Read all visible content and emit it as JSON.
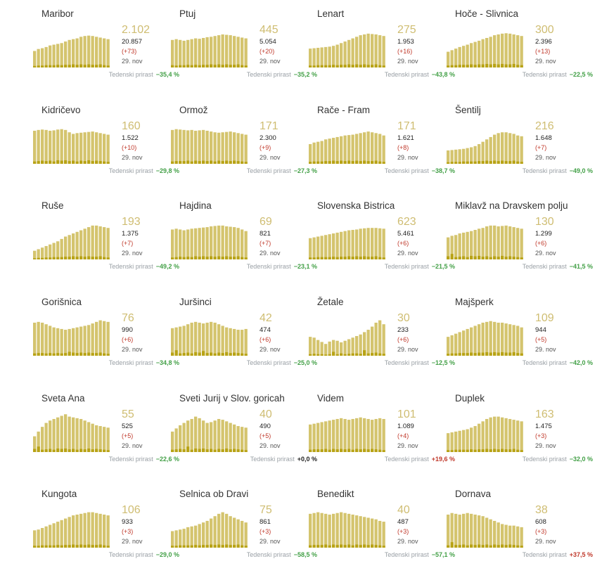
{
  "colors": {
    "bar": "#d4c46e",
    "newcases": "#b8a316",
    "active": "#cfbd72",
    "positive": "#43a047",
    "negative": "#c0392b",
    "zero": "#222222"
  },
  "growth_label": "Tedenski prirast",
  "chart_data": [
    {
      "type": "bar",
      "title": "Maribor",
      "active": "2.102",
      "total": "20.857",
      "delta": "(+73)",
      "date": "29. nov",
      "growth": "−35,4 %",
      "trend": "down",
      "values": [
        42,
        47,
        49,
        52,
        56,
        58,
        60,
        62,
        66,
        70,
        72,
        74,
        78,
        80,
        81,
        80,
        78,
        76,
        74,
        72
      ],
      "new": [
        4,
        5,
        5,
        6,
        6,
        6,
        7,
        6,
        7,
        7,
        8,
        7,
        8,
        7,
        8,
        7,
        7,
        8,
        6,
        5
      ]
    },
    {
      "type": "bar",
      "title": "Ptuj",
      "active": "445",
      "total": "5.054",
      "delta": "(+20)",
      "date": "29. nov",
      "growth": "−35,2 %",
      "trend": "down",
      "values": [
        70,
        72,
        70,
        68,
        70,
        72,
        74,
        73,
        75,
        77,
        78,
        80,
        82,
        84,
        83,
        82,
        80,
        78,
        76,
        74
      ],
      "new": [
        6,
        5,
        6,
        6,
        7,
        6,
        7,
        6,
        7,
        7,
        8,
        7,
        8,
        7,
        8,
        7,
        7,
        8,
        6,
        5
      ]
    },
    {
      "type": "bar",
      "title": "Lenart",
      "active": "275",
      "total": "1.953",
      "delta": "(+16)",
      "date": "29. nov",
      "growth": "−43,8 %",
      "trend": "down",
      "values": [
        48,
        49,
        50,
        51,
        52,
        53,
        55,
        58,
        62,
        66,
        70,
        74,
        78,
        82,
        84,
        86,
        85,
        84,
        82,
        80
      ],
      "new": [
        5,
        5,
        6,
        6,
        6,
        6,
        7,
        6,
        7,
        7,
        8,
        7,
        8,
        7,
        8,
        7,
        7,
        8,
        6,
        5
      ]
    },
    {
      "type": "bar",
      "title": "Hoče - Slivnica",
      "active": "300",
      "total": "2.396",
      "delta": "(+13)",
      "date": "29. nov",
      "growth": "−22,5 %",
      "trend": "down",
      "values": [
        40,
        44,
        48,
        52,
        55,
        58,
        62,
        65,
        68,
        72,
        75,
        78,
        82,
        84,
        86,
        87,
        86,
        84,
        82,
        80
      ],
      "new": [
        5,
        6,
        6,
        7,
        7,
        7,
        8,
        7,
        8,
        8,
        9,
        8,
        9,
        8,
        9,
        8,
        8,
        9,
        7,
        6
      ]
    },
    {
      "type": "bar",
      "title": "Kidričevo",
      "active": "160",
      "total": "1.522",
      "delta": "(+10)",
      "date": "29. nov",
      "growth": "−29,8 %",
      "trend": "down",
      "values": [
        84,
        86,
        87,
        86,
        84,
        85,
        87,
        88,
        86,
        80,
        76,
        78,
        79,
        80,
        81,
        82,
        80,
        78,
        76,
        74
      ],
      "new": [
        6,
        7,
        8,
        7,
        8,
        6,
        9,
        8,
        9,
        7,
        8,
        6,
        8,
        7,
        9,
        7,
        8,
        7,
        6,
        5
      ]
    },
    {
      "type": "bar",
      "title": "Ormož",
      "active": "171",
      "total": "2.300",
      "delta": "(+9)",
      "date": "29. nov",
      "growth": "−27,3 %",
      "trend": "down",
      "values": [
        86,
        88,
        87,
        86,
        85,
        86,
        84,
        85,
        86,
        84,
        82,
        80,
        79,
        80,
        81,
        82,
        80,
        78,
        76,
        74
      ],
      "new": [
        6,
        7,
        7,
        7,
        8,
        6,
        8,
        7,
        8,
        7,
        8,
        6,
        8,
        7,
        8,
        7,
        8,
        7,
        6,
        5
      ]
    },
    {
      "type": "bar",
      "title": "Rače - Fram",
      "active": "171",
      "total": "1.621",
      "delta": "(+8)",
      "date": "29. nov",
      "growth": "−38,7 %",
      "trend": "down",
      "values": [
        50,
        54,
        56,
        58,
        62,
        64,
        66,
        68,
        70,
        72,
        73,
        74,
        76,
        78,
        80,
        82,
        80,
        78,
        76,
        72
      ],
      "new": [
        5,
        6,
        6,
        6,
        7,
        7,
        8,
        7,
        8,
        7,
        8,
        7,
        8,
        7,
        8,
        7,
        7,
        8,
        6,
        5
      ]
    },
    {
      "type": "bar",
      "title": "Šentilj",
      "active": "216",
      "total": "1.648",
      "delta": "(+7)",
      "date": "29. nov",
      "growth": "−49,0 %",
      "trend": "down",
      "values": [
        34,
        35,
        36,
        37,
        38,
        40,
        42,
        45,
        50,
        56,
        62,
        68,
        74,
        78,
        80,
        80,
        78,
        76,
        72,
        70
      ],
      "new": [
        4,
        5,
        5,
        5,
        6,
        6,
        6,
        6,
        7,
        7,
        8,
        7,
        8,
        7,
        8,
        7,
        7,
        8,
        6,
        5
      ]
    },
    {
      "type": "bar",
      "title": "Ruše",
      "active": "193",
      "total": "1.375",
      "delta": "(+7)",
      "date": "29. nov",
      "growth": "−49,2 %",
      "trend": "down",
      "values": [
        22,
        26,
        30,
        34,
        38,
        42,
        46,
        52,
        58,
        62,
        66,
        70,
        74,
        78,
        82,
        86,
        86,
        84,
        82,
        80
      ],
      "new": [
        3,
        4,
        4,
        5,
        5,
        6,
        6,
        6,
        7,
        7,
        8,
        7,
        8,
        7,
        8,
        7,
        7,
        8,
        6,
        5
      ]
    },
    {
      "type": "bar",
      "title": "Hajdina",
      "active": "69",
      "total": "821",
      "delta": "(+7)",
      "date": "29. nov",
      "growth": "−23,1 %",
      "trend": "down",
      "values": [
        76,
        78,
        76,
        74,
        76,
        78,
        79,
        80,
        81,
        82,
        84,
        85,
        86,
        86,
        84,
        83,
        82,
        80,
        76,
        72
      ],
      "new": [
        5,
        6,
        7,
        6,
        7,
        6,
        8,
        7,
        8,
        7,
        8,
        7,
        8,
        7,
        8,
        7,
        7,
        8,
        6,
        5
      ]
    },
    {
      "type": "bar",
      "title": "Slovenska Bistrica",
      "active": "623",
      "total": "5.461",
      "delta": "(+6)",
      "date": "29. nov",
      "growth": "−21,5 %",
      "trend": "down",
      "values": [
        54,
        56,
        58,
        60,
        62,
        64,
        66,
        68,
        70,
        72,
        74,
        75,
        76,
        78,
        79,
        80,
        80,
        80,
        79,
        78
      ],
      "new": [
        5,
        5,
        6,
        6,
        6,
        6,
        7,
        6,
        7,
        7,
        8,
        7,
        8,
        7,
        8,
        7,
        7,
        8,
        6,
        5
      ]
    },
    {
      "type": "bar",
      "title": "Miklavž na Dravskem polju",
      "active": "130",
      "total": "1.299",
      "delta": "(+6)",
      "date": "29. nov",
      "growth": "−41,5 %",
      "trend": "down",
      "values": [
        56,
        60,
        62,
        66,
        68,
        70,
        72,
        75,
        78,
        80,
        84,
        86,
        86,
        84,
        85,
        86,
        84,
        82,
        80,
        78
      ],
      "new": [
        8,
        14,
        6,
        7,
        8,
        6,
        9,
        8,
        9,
        7,
        8,
        6,
        8,
        7,
        9,
        7,
        8,
        7,
        6,
        5
      ]
    },
    {
      "type": "bar",
      "title": "Gorišnica",
      "active": "76",
      "total": "990",
      "delta": "(+6)",
      "date": "29. nov",
      "growth": "−34,8 %",
      "trend": "down",
      "values": [
        84,
        86,
        84,
        80,
        76,
        72,
        70,
        68,
        66,
        68,
        70,
        72,
        74,
        76,
        78,
        82,
        86,
        90,
        88,
        86
      ],
      "new": [
        6,
        7,
        7,
        6,
        7,
        6,
        7,
        6,
        7,
        10,
        8,
        7,
        8,
        7,
        8,
        7,
        7,
        8,
        6,
        5
      ]
    },
    {
      "type": "bar",
      "title": "Juršinci",
      "active": "42",
      "total": "474",
      "delta": "(+6)",
      "date": "29. nov",
      "growth": "−25,0 %",
      "trend": "down",
      "values": [
        70,
        72,
        74,
        76,
        80,
        84,
        86,
        84,
        82,
        84,
        86,
        84,
        80,
        76,
        72,
        70,
        68,
        66,
        66,
        68
      ],
      "new": [
        8,
        14,
        6,
        7,
        8,
        6,
        9,
        8,
        12,
        7,
        8,
        6,
        8,
        7,
        9,
        7,
        8,
        7,
        6,
        5
      ]
    },
    {
      "type": "bar",
      "title": "Žetale",
      "active": "30",
      "total": "233",
      "delta": "(+6)",
      "date": "29. nov",
      "growth": "−12,5 %",
      "trend": "down",
      "values": [
        48,
        46,
        40,
        35,
        30,
        36,
        40,
        38,
        34,
        38,
        42,
        46,
        50,
        54,
        60,
        66,
        74,
        84,
        90,
        80
      ],
      "new": [
        4,
        5,
        4,
        4,
        3,
        4,
        10,
        4,
        6,
        4,
        5,
        6,
        6,
        5,
        14,
        6,
        7,
        8,
        6,
        5
      ]
    },
    {
      "type": "bar",
      "title": "Majšperk",
      "active": "109",
      "total": "944",
      "delta": "(+5)",
      "date": "29. nov",
      "growth": "−42,0 %",
      "trend": "down",
      "values": [
        48,
        52,
        56,
        60,
        64,
        68,
        72,
        76,
        80,
        84,
        86,
        88,
        86,
        84,
        84,
        82,
        80,
        78,
        76,
        72
      ],
      "new": [
        5,
        6,
        6,
        7,
        7,
        7,
        8,
        7,
        8,
        8,
        9,
        8,
        9,
        8,
        9,
        8,
        8,
        9,
        7,
        6
      ]
    },
    {
      "type": "bar",
      "title": "Sveta Ana",
      "active": "55",
      "total": "525",
      "delta": "(+5)",
      "date": "29. nov",
      "growth": "−22,6 %",
      "trend": "down",
      "values": [
        40,
        52,
        64,
        74,
        80,
        84,
        88,
        92,
        96,
        90,
        88,
        86,
        84,
        80,
        76,
        72,
        68,
        66,
        64,
        62
      ],
      "new": [
        8,
        14,
        6,
        7,
        8,
        6,
        9,
        8,
        9,
        7,
        8,
        6,
        8,
        7,
        9,
        7,
        8,
        7,
        6,
        5
      ]
    },
    {
      "type": "bar",
      "title": "Sveti Jurij v Slov. goricah",
      "active": "40",
      "total": "490",
      "delta": "(+5)",
      "date": "29. nov",
      "growth": "+0,0 %",
      "trend": "zero",
      "values": [
        52,
        60,
        68,
        74,
        80,
        84,
        90,
        86,
        80,
        74,
        76,
        80,
        84,
        82,
        78,
        74,
        70,
        66,
        64,
        62
      ],
      "new": [
        6,
        7,
        8,
        7,
        14,
        6,
        9,
        8,
        9,
        7,
        8,
        6,
        8,
        7,
        9,
        7,
        8,
        7,
        6,
        5
      ]
    },
    {
      "type": "bar",
      "title": "Videm",
      "active": "101",
      "total": "1.089",
      "delta": "(+4)",
      "date": "29. nov",
      "growth": "+19,6 %",
      "trend": "up",
      "values": [
        70,
        72,
        74,
        76,
        78,
        80,
        82,
        84,
        86,
        84,
        82,
        84,
        86,
        88,
        86,
        84,
        82,
        84,
        86,
        84
      ],
      "new": [
        6,
        7,
        7,
        7,
        8,
        6,
        8,
        7,
        8,
        7,
        8,
        6,
        8,
        7,
        8,
        7,
        8,
        7,
        6,
        5
      ]
    },
    {
      "type": "bar",
      "title": "Duplek",
      "active": "163",
      "total": "1.475",
      "delta": "(+3)",
      "date": "29. nov",
      "growth": "−32,0 %",
      "trend": "down",
      "values": [
        48,
        50,
        52,
        54,
        56,
        58,
        62,
        66,
        72,
        78,
        84,
        88,
        90,
        90,
        88,
        86,
        84,
        82,
        80,
        78
      ],
      "new": [
        5,
        5,
        6,
        6,
        6,
        6,
        7,
        6,
        7,
        7,
        8,
        7,
        8,
        7,
        8,
        7,
        7,
        8,
        6,
        5
      ]
    },
    {
      "type": "bar",
      "title": "Kungota",
      "active": "106",
      "total": "933",
      "delta": "(+3)",
      "date": "29. nov",
      "growth": "−29,0 %",
      "trend": "down",
      "values": [
        44,
        46,
        50,
        54,
        58,
        62,
        66,
        70,
        74,
        78,
        82,
        84,
        86,
        88,
        90,
        90,
        88,
        86,
        84,
        82
      ],
      "new": [
        5,
        5,
        6,
        6,
        6,
        6,
        7,
        6,
        7,
        7,
        8,
        7,
        8,
        7,
        8,
        7,
        7,
        8,
        6,
        5
      ]
    },
    {
      "type": "bar",
      "title": "Selnica ob Dravi",
      "active": "75",
      "total": "861",
      "delta": "(+3)",
      "date": "29. nov",
      "growth": "−58,5 %",
      "trend": "down",
      "values": [
        42,
        44,
        46,
        48,
        52,
        54,
        56,
        60,
        64,
        68,
        74,
        80,
        86,
        90,
        86,
        80,
        76,
        72,
        68,
        64
      ],
      "new": [
        5,
        5,
        6,
        6,
        6,
        6,
        7,
        6,
        7,
        7,
        8,
        7,
        8,
        7,
        8,
        7,
        7,
        8,
        6,
        5
      ]
    },
    {
      "type": "bar",
      "title": "Benedikt",
      "active": "40",
      "total": "487",
      "delta": "(+3)",
      "date": "29. nov",
      "growth": "−57,1 %",
      "trend": "down",
      "values": [
        86,
        88,
        90,
        88,
        86,
        84,
        86,
        88,
        90,
        88,
        86,
        84,
        82,
        80,
        78,
        76,
        74,
        72,
        68,
        66
      ],
      "new": [
        6,
        7,
        7,
        7,
        8,
        6,
        8,
        7,
        8,
        7,
        8,
        6,
        8,
        7,
        8,
        7,
        8,
        7,
        6,
        5
      ]
    },
    {
      "type": "bar",
      "title": "Dornava",
      "active": "38",
      "total": "608",
      "delta": "(+3)",
      "date": "29. nov",
      "growth": "+37,5 %",
      "trend": "up",
      "values": [
        84,
        88,
        86,
        84,
        86,
        88,
        86,
        84,
        82,
        80,
        76,
        72,
        68,
        64,
        60,
        58,
        56,
        56,
        54,
        52
      ],
      "new": [
        6,
        14,
        7,
        7,
        8,
        6,
        8,
        7,
        8,
        7,
        8,
        6,
        8,
        7,
        8,
        7,
        8,
        7,
        6,
        5
      ]
    }
  ]
}
